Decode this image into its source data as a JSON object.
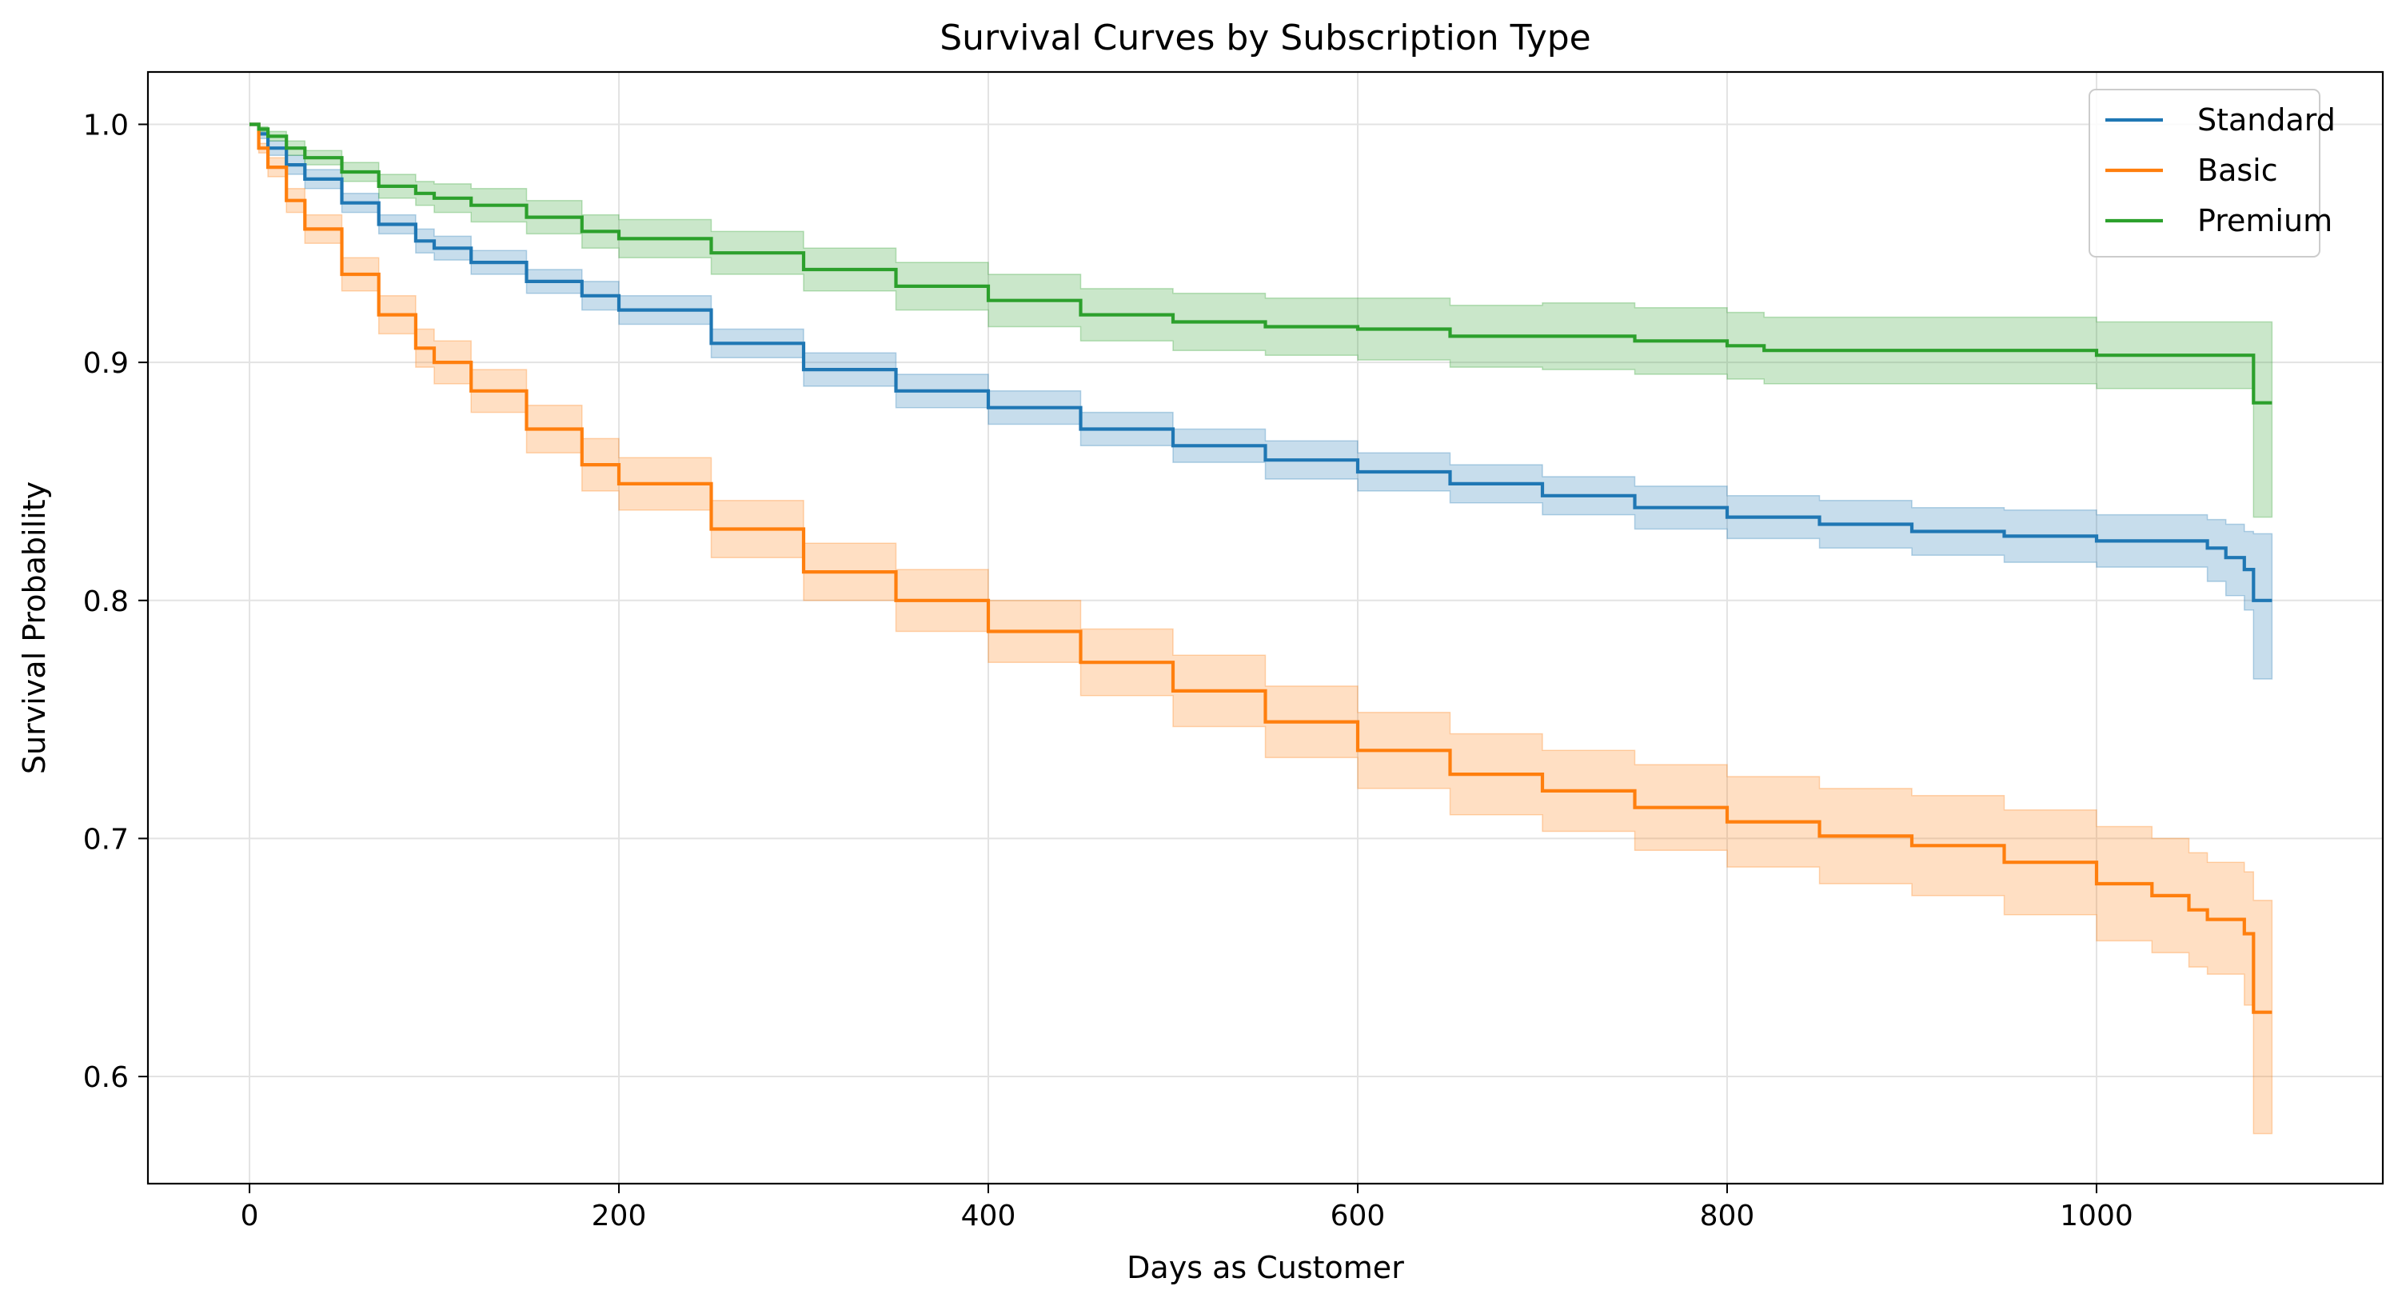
{
  "chart_data": {
    "type": "line",
    "title": "Survival Curves by Subscription Type",
    "xlabel": "Days as Customer",
    "ylabel": "Survival Probability",
    "xlim": [
      -55,
      1155
    ],
    "ylim": [
      0.555,
      1.022
    ],
    "xticks": [
      0,
      200,
      400,
      600,
      800,
      1000
    ],
    "xtick_labels": [
      "0",
      "200",
      "400",
      "600",
      "800",
      "1000"
    ],
    "yticks": [
      0.6,
      0.7,
      0.8,
      0.9,
      1.0
    ],
    "ytick_labels": [
      "0.6",
      "0.7",
      "0.8",
      "0.9",
      "1.0"
    ],
    "grid": true,
    "legend_position": "top-right",
    "series": [
      {
        "name": "Standard",
        "color": "#1f77b4",
        "band_color": "#1f77b4",
        "x": [
          0,
          5,
          10,
          20,
          30,
          50,
          70,
          90,
          100,
          120,
          150,
          180,
          200,
          250,
          300,
          350,
          400,
          450,
          500,
          550,
          600,
          650,
          700,
          750,
          800,
          850,
          900,
          950,
          1000,
          1050,
          1060,
          1070,
          1080,
          1085,
          1095
        ],
        "y": [
          1.0,
          0.996,
          0.99,
          0.983,
          0.977,
          0.967,
          0.958,
          0.951,
          0.948,
          0.942,
          0.934,
          0.928,
          0.922,
          0.908,
          0.897,
          0.888,
          0.881,
          0.872,
          0.865,
          0.859,
          0.854,
          0.849,
          0.844,
          0.839,
          0.835,
          0.832,
          0.829,
          0.827,
          0.825,
          0.825,
          0.822,
          0.818,
          0.813,
          0.8,
          0.8
        ],
        "lower": [
          1.0,
          0.994,
          0.987,
          0.979,
          0.973,
          0.963,
          0.954,
          0.946,
          0.943,
          0.937,
          0.929,
          0.922,
          0.916,
          0.902,
          0.89,
          0.881,
          0.874,
          0.865,
          0.858,
          0.851,
          0.846,
          0.841,
          0.836,
          0.83,
          0.826,
          0.822,
          0.819,
          0.816,
          0.814,
          0.814,
          0.808,
          0.802,
          0.796,
          0.767,
          0.767
        ],
        "upper": [
          1.0,
          0.998,
          0.993,
          0.987,
          0.981,
          0.971,
          0.962,
          0.956,
          0.953,
          0.947,
          0.939,
          0.934,
          0.928,
          0.914,
          0.904,
          0.895,
          0.888,
          0.879,
          0.872,
          0.867,
          0.862,
          0.857,
          0.852,
          0.848,
          0.844,
          0.842,
          0.839,
          0.838,
          0.836,
          0.836,
          0.834,
          0.832,
          0.829,
          0.828,
          0.828
        ]
      },
      {
        "name": "Basic",
        "color": "#ff7f0e",
        "band_color": "#ff7f0e",
        "x": [
          0,
          5,
          10,
          20,
          30,
          50,
          70,
          90,
          100,
          120,
          150,
          180,
          200,
          250,
          300,
          350,
          400,
          450,
          500,
          550,
          600,
          650,
          700,
          750,
          800,
          850,
          900,
          950,
          1000,
          1030,
          1050,
          1060,
          1070,
          1080,
          1085,
          1095
        ],
        "y": [
          1.0,
          0.99,
          0.982,
          0.968,
          0.956,
          0.937,
          0.92,
          0.906,
          0.9,
          0.888,
          0.872,
          0.857,
          0.849,
          0.83,
          0.812,
          0.8,
          0.787,
          0.774,
          0.762,
          0.749,
          0.737,
          0.727,
          0.72,
          0.713,
          0.707,
          0.701,
          0.697,
          0.69,
          0.681,
          0.676,
          0.67,
          0.666,
          0.666,
          0.66,
          0.627,
          0.627
        ],
        "lower": [
          1.0,
          0.988,
          0.978,
          0.963,
          0.95,
          0.93,
          0.912,
          0.898,
          0.891,
          0.879,
          0.862,
          0.846,
          0.838,
          0.818,
          0.8,
          0.787,
          0.774,
          0.76,
          0.747,
          0.734,
          0.721,
          0.71,
          0.703,
          0.695,
          0.688,
          0.681,
          0.676,
          0.668,
          0.657,
          0.652,
          0.646,
          0.643,
          0.643,
          0.63,
          0.576,
          0.576
        ],
        "upper": [
          1.0,
          0.992,
          0.986,
          0.973,
          0.962,
          0.944,
          0.928,
          0.914,
          0.909,
          0.897,
          0.882,
          0.868,
          0.86,
          0.842,
          0.824,
          0.813,
          0.8,
          0.788,
          0.777,
          0.764,
          0.753,
          0.744,
          0.737,
          0.731,
          0.726,
          0.721,
          0.718,
          0.712,
          0.705,
          0.7,
          0.694,
          0.69,
          0.69,
          0.686,
          0.674,
          0.674
        ]
      },
      {
        "name": "Premium",
        "color": "#2ca02c",
        "band_color": "#2ca02c",
        "x": [
          0,
          5,
          10,
          20,
          30,
          50,
          70,
          90,
          100,
          120,
          150,
          180,
          200,
          250,
          300,
          350,
          400,
          450,
          500,
          550,
          600,
          650,
          700,
          750,
          800,
          820,
          850,
          900,
          950,
          990,
          1000,
          1050,
          1080,
          1085,
          1095
        ],
        "y": [
          1.0,
          0.998,
          0.995,
          0.99,
          0.986,
          0.98,
          0.974,
          0.971,
          0.969,
          0.966,
          0.961,
          0.955,
          0.952,
          0.946,
          0.939,
          0.932,
          0.926,
          0.92,
          0.917,
          0.915,
          0.914,
          0.911,
          0.911,
          0.909,
          0.907,
          0.905,
          0.905,
          0.905,
          0.905,
          0.905,
          0.903,
          0.903,
          0.903,
          0.883,
          0.883
        ],
        "lower": [
          1.0,
          0.997,
          0.993,
          0.987,
          0.983,
          0.976,
          0.969,
          0.966,
          0.963,
          0.959,
          0.954,
          0.948,
          0.944,
          0.937,
          0.93,
          0.922,
          0.915,
          0.909,
          0.905,
          0.903,
          0.901,
          0.898,
          0.897,
          0.895,
          0.893,
          0.891,
          0.891,
          0.891,
          0.891,
          0.891,
          0.889,
          0.889,
          0.889,
          0.835,
          0.835
        ],
        "upper": [
          1.0,
          0.999,
          0.997,
          0.993,
          0.989,
          0.984,
          0.979,
          0.976,
          0.975,
          0.973,
          0.968,
          0.962,
          0.96,
          0.955,
          0.948,
          0.942,
          0.937,
          0.931,
          0.929,
          0.927,
          0.927,
          0.924,
          0.925,
          0.923,
          0.921,
          0.919,
          0.919,
          0.919,
          0.919,
          0.919,
          0.917,
          0.917,
          0.917,
          0.917,
          0.917
        ]
      }
    ]
  }
}
